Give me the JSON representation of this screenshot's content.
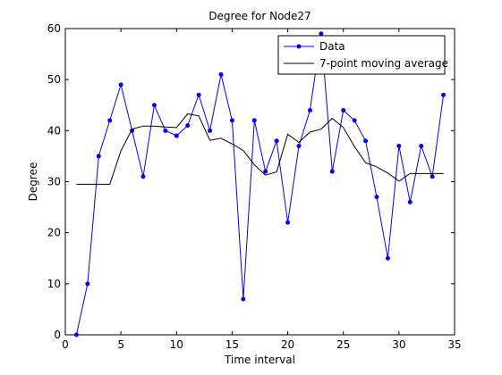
{
  "chart_data": {
    "type": "line",
    "title": "Degree for Node27",
    "xlabel": "Time interval",
    "ylabel": "Degree",
    "xlim": [
      0,
      35
    ],
    "ylim": [
      0,
      60
    ],
    "xticks": [
      0,
      5,
      10,
      15,
      20,
      25,
      30,
      35
    ],
    "yticks": [
      0,
      10,
      20,
      30,
      40,
      50,
      60
    ],
    "grid": false,
    "legend_position": "top-right",
    "x": [
      1,
      2,
      3,
      4,
      5,
      6,
      7,
      8,
      9,
      10,
      11,
      12,
      13,
      14,
      15,
      16,
      17,
      18,
      19,
      20,
      21,
      22,
      23,
      24,
      25,
      26,
      27,
      28,
      29,
      30,
      31,
      32,
      33,
      34
    ],
    "series": [
      {
        "name": "Data",
        "color": "#0000ff",
        "marker": "dot",
        "values": [
          0,
          10,
          35,
          42,
          49,
          40,
          31,
          45,
          40,
          39,
          41,
          47,
          40,
          51,
          42,
          7,
          42,
          32,
          38,
          22,
          37,
          44,
          59,
          32,
          44,
          42,
          38,
          27,
          15,
          37,
          26,
          37,
          31,
          47
        ]
      },
      {
        "name": "7-point moving average",
        "color": "#000000",
        "marker": "none",
        "values": [
          29.5,
          29.5,
          29.5,
          29.5,
          36.0,
          40.3,
          40.9,
          40.9,
          40.7,
          40.6,
          43.3,
          42.9,
          38.1,
          38.5,
          37.4,
          36.1,
          33.3,
          31.3,
          31.9,
          39.3,
          37.7,
          39.7,
          40.3,
          42.4,
          40.6,
          36.9,
          33.7,
          32.9,
          31.7,
          30.1,
          31.6,
          31.6,
          31.6,
          31.6
        ]
      }
    ]
  }
}
